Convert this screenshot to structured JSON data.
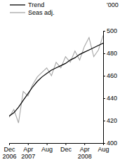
{
  "chart_data": {
    "type": "line",
    "y_label": "'000",
    "categories": [
      "Dec 2006",
      null,
      null,
      null,
      "Apr 2007",
      null,
      null,
      null,
      "Aug",
      null,
      null,
      null,
      "Dec",
      null,
      null,
      null,
      "Apr 2008",
      null,
      null,
      null,
      "Aug"
    ],
    "series": [
      {
        "name": "Trend",
        "color": "#000000",
        "values": [
          424,
          427,
          432,
          438,
          444,
          450,
          455,
          459,
          462,
          465,
          467,
          469,
          471,
          474,
          476,
          479,
          481,
          483,
          485,
          487,
          489
        ]
      },
      {
        "name": "Seas adj.",
        "color": "#a6a6a6",
        "values": [
          423,
          430,
          418,
          446,
          442,
          452,
          459,
          463,
          467,
          460,
          472,
          467,
          477,
          472,
          482,
          474,
          486,
          494,
          477,
          483,
          496
        ]
      }
    ],
    "ylim": [
      400,
      500
    ],
    "yticks": [
      400,
      420,
      440,
      460,
      480,
      500
    ],
    "legend": "top-left"
  }
}
